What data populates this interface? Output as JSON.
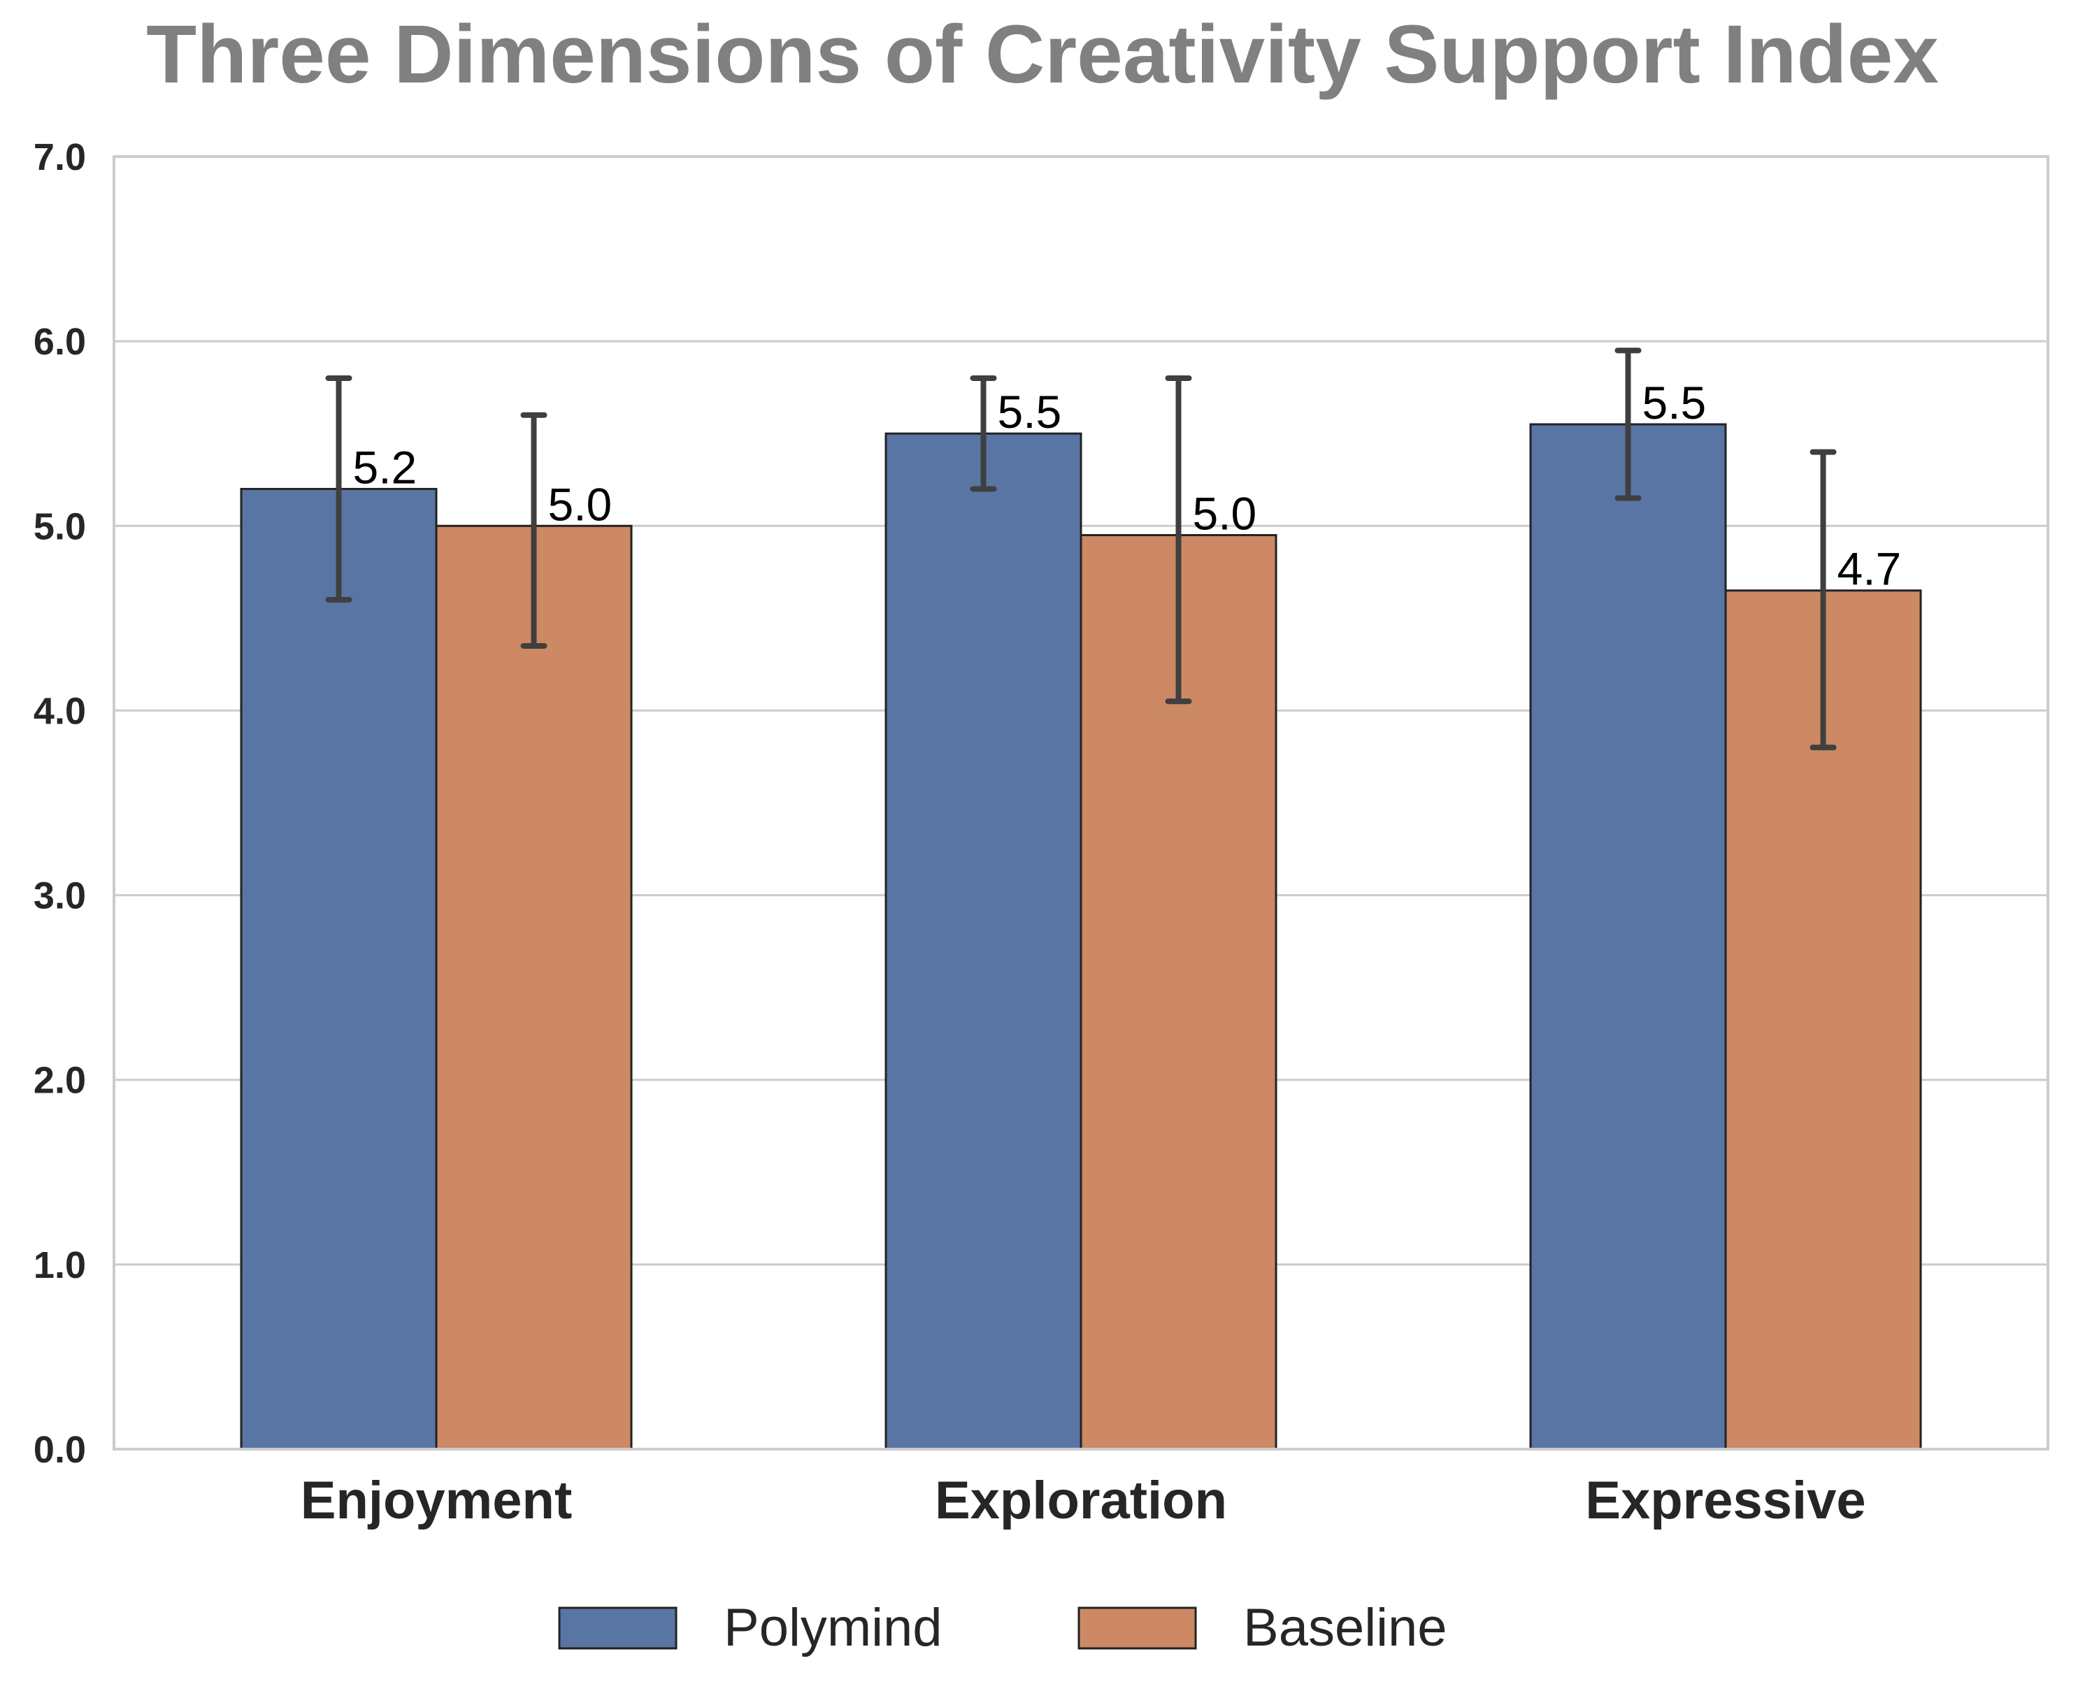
{
  "chart_data": {
    "type": "bar",
    "title": "Three Dimensions of Creativity Support Index",
    "xlabel": "",
    "ylabel": "",
    "categories": [
      "Enjoyment",
      "Exploration",
      "Expressive"
    ],
    "ylim": [
      0,
      7
    ],
    "yticks": [
      0,
      1,
      2,
      3,
      4,
      5,
      6,
      7
    ],
    "ytick_labels": [
      "0.0",
      "1.0",
      "2.0",
      "3.0",
      "4.0",
      "5.0",
      "6.0",
      "7.0"
    ],
    "grid": "horizontal",
    "legend_position": "bottom-center",
    "series": [
      {
        "name": "Polymind",
        "color": "#5975a4",
        "values": [
          5.2,
          5.5,
          5.55
        ],
        "error": [
          [
            4.6,
            5.8
          ],
          [
            5.2,
            5.8
          ],
          [
            5.15,
            5.95
          ]
        ],
        "labels": [
          "5.2",
          "5.5",
          "5.5"
        ]
      },
      {
        "name": "Baseline",
        "color": "#cc8963",
        "values": [
          5.0,
          4.95,
          4.65
        ],
        "error": [
          [
            4.35,
            5.6
          ],
          [
            4.05,
            5.8
          ],
          [
            3.8,
            5.4
          ]
        ],
        "labels": [
          "5.0",
          "5.0",
          "4.7"
        ]
      }
    ]
  }
}
